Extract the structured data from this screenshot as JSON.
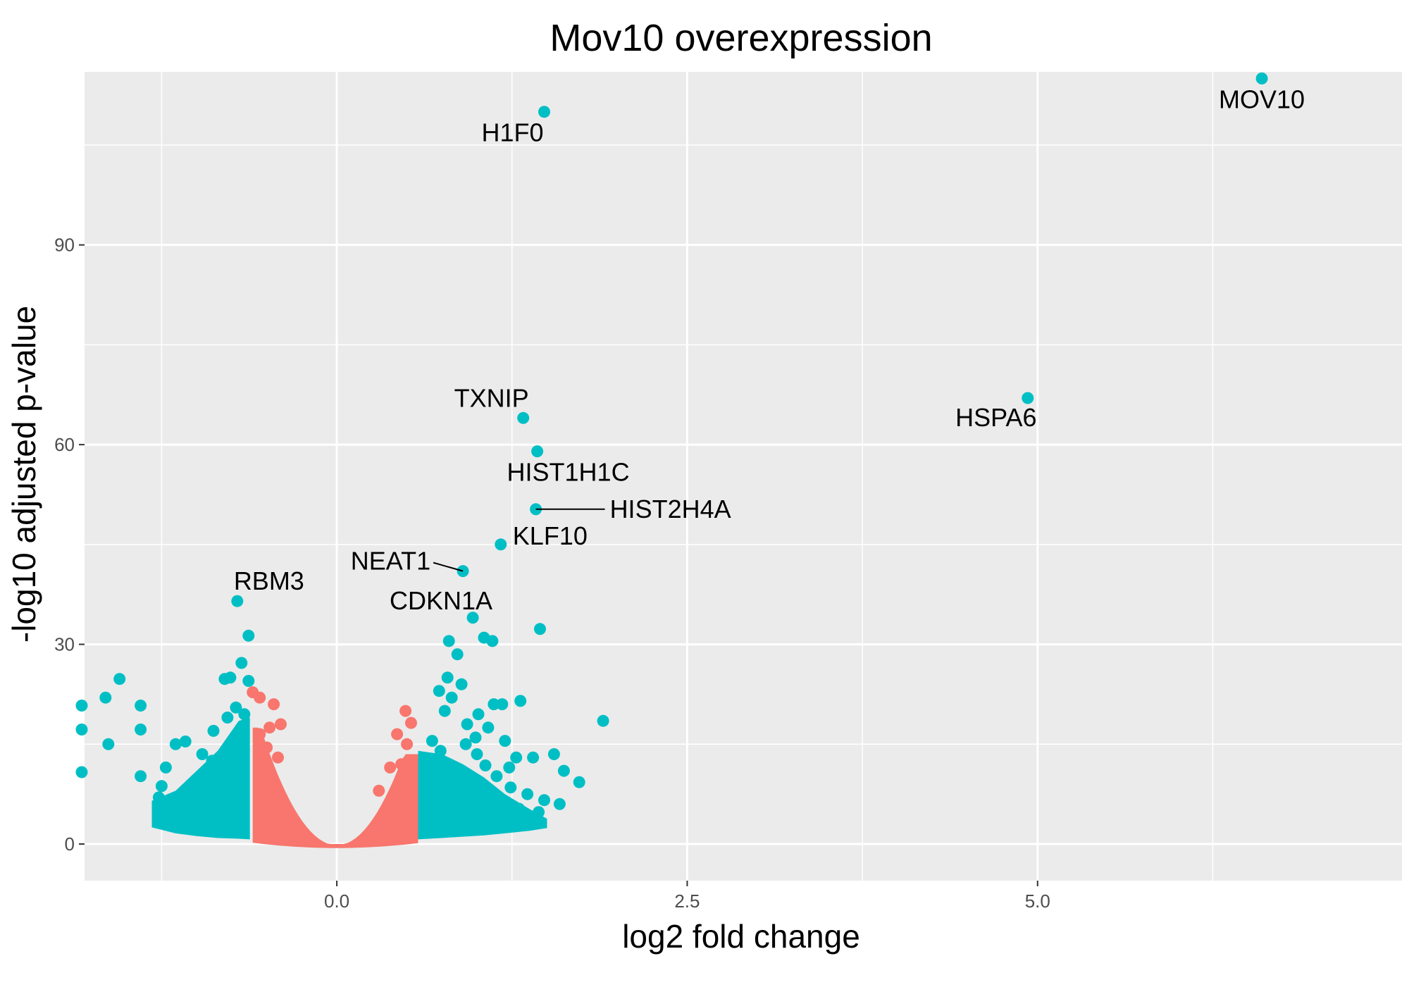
{
  "chart_data": {
    "type": "scatter",
    "title": "Mov10 overexpression",
    "xlabel": "log2 fold change",
    "ylabel": "-log10 adjusted p-value",
    "xlim": [
      -1.8,
      7.6
    ],
    "ylim": [
      -5.5,
      116
    ],
    "xticks": [
      0.0,
      2.5,
      5.0
    ],
    "xtick_labels": [
      "0.0",
      "2.5",
      "5.0"
    ],
    "yticks": [
      0,
      30,
      60,
      90
    ],
    "ytick_labels": [
      "0",
      "30",
      "60",
      "90"
    ],
    "grid": true,
    "legend": "none",
    "colors": {
      "not_significant": "#F8766D",
      "significant": "#00BFC4",
      "panel_background": "#EBEBEB",
      "grid": "#FFFFFF"
    },
    "series": [
      {
        "color": "#00BFC4",
        "points": [
          [
            6.6,
            115
          ],
          [
            1.48,
            110
          ],
          [
            4.93,
            67
          ],
          [
            1.33,
            64
          ],
          [
            1.43,
            59
          ],
          [
            1.42,
            50.3
          ],
          [
            1.17,
            45
          ],
          [
            0.9,
            41
          ],
          [
            -0.71,
            36.5
          ],
          [
            0.97,
            34
          ],
          [
            1.45,
            32.3
          ],
          [
            -0.63,
            31.3
          ],
          [
            1.05,
            31
          ],
          [
            1.11,
            30.5
          ],
          [
            0.8,
            30.5
          ],
          [
            0.86,
            28.5
          ],
          [
            -0.68,
            27.2
          ],
          [
            -0.76,
            25
          ],
          [
            -0.8,
            24.8
          ],
          [
            -0.63,
            24.5
          ],
          [
            -1.55,
            24.8
          ],
          [
            -1.65,
            22
          ],
          [
            -1.4,
            20.8
          ],
          [
            -1.82,
            20.8
          ],
          [
            -1.82,
            17.2
          ],
          [
            -1.4,
            17.2
          ],
          [
            -1.63,
            15
          ],
          [
            -1.82,
            10.8
          ],
          [
            -1.4,
            10.2
          ],
          [
            1.9,
            18.5
          ],
          [
            1.31,
            21.5
          ],
          [
            1.18,
            21
          ],
          [
            1.12,
            21
          ],
          [
            0.89,
            24
          ],
          [
            0.79,
            25
          ],
          [
            0.73,
            23
          ],
          [
            0.82,
            22
          ],
          [
            0.77,
            20
          ],
          [
            0.93,
            18
          ],
          [
            1.01,
            19.5
          ],
          [
            1.08,
            17.5
          ],
          [
            1.4,
            13
          ],
          [
            1.55,
            13.5
          ],
          [
            1.62,
            11
          ],
          [
            1.73,
            9.3
          ],
          [
            1.59,
            6
          ],
          [
            1.48,
            6.6
          ],
          [
            1.3,
            5.3
          ],
          [
            1.21,
            4.2
          ],
          [
            1.12,
            3.5
          ],
          [
            -0.72,
            20.5
          ],
          [
            -0.66,
            19.5
          ],
          [
            -0.78,
            19
          ],
          [
            -0.88,
            17
          ],
          [
            -1.08,
            15.4
          ],
          [
            -1.15,
            15
          ],
          [
            -0.96,
            13.5
          ],
          [
            -0.89,
            12.5
          ],
          [
            -1.22,
            11.5
          ],
          [
            -1.25,
            8.7
          ],
          [
            -1.0,
            9.2
          ],
          [
            -1.27,
            7
          ],
          [
            -1.18,
            6
          ],
          [
            -0.98,
            5.5
          ],
          [
            -0.95,
            4.2
          ],
          [
            -1.05,
            3.5
          ],
          [
            -0.83,
            10
          ],
          [
            -0.74,
            11.5
          ],
          [
            -0.72,
            14
          ],
          [
            -0.8,
            8
          ],
          [
            -0.88,
            6.5
          ],
          [
            0.66,
            9
          ],
          [
            0.7,
            12
          ],
          [
            0.74,
            14
          ],
          [
            0.68,
            15.5
          ],
          [
            0.86,
            11
          ],
          [
            0.95,
            9
          ],
          [
            1.04,
            8
          ],
          [
            0.88,
            6
          ],
          [
            0.78,
            5
          ],
          [
            0.72,
            4
          ],
          [
            0.66,
            3.5
          ],
          [
            1.24,
            8.5
          ],
          [
            1.36,
            7.5
          ],
          [
            1.44,
            4.8
          ],
          [
            1.0,
            13.5
          ],
          [
            1.06,
            11.8
          ],
          [
            1.14,
            10.2
          ],
          [
            1.23,
            11.5
          ],
          [
            0.92,
            15
          ],
          [
            0.99,
            16
          ],
          [
            1.2,
            15.5
          ],
          [
            1.28,
            13
          ]
        ]
      },
      {
        "color": "#F8766D",
        "points": [
          [
            -0.6,
            22.8
          ],
          [
            -0.55,
            22
          ],
          [
            -0.45,
            21
          ],
          [
            0.49,
            20
          ],
          [
            0.53,
            18.2
          ],
          [
            0.43,
            16.5
          ],
          [
            0.5,
            15
          ],
          [
            -0.4,
            18
          ],
          [
            -0.48,
            17.5
          ],
          [
            -0.55,
            16.5
          ],
          [
            -0.5,
            14.5
          ],
          [
            -0.42,
            13
          ],
          [
            0.38,
            11.5
          ],
          [
            0.46,
            12
          ],
          [
            0.3,
            8
          ]
        ]
      }
    ],
    "annotations": [
      {
        "text": "MOV10",
        "x": 6.6,
        "y": 115
      },
      {
        "text": "H1F0",
        "x": 1.48,
        "y": 110
      },
      {
        "text": "HSPA6",
        "x": 4.93,
        "y": 67
      },
      {
        "text": "TXNIP",
        "x": 1.33,
        "y": 64
      },
      {
        "text": "HIST1H1C",
        "x": 1.43,
        "y": 59
      },
      {
        "text": "HIST2H4A",
        "x": 1.42,
        "y": 50.3
      },
      {
        "text": "KLF10",
        "x": 1.17,
        "y": 45
      },
      {
        "text": "NEAT1",
        "x": 0.9,
        "y": 41
      },
      {
        "text": "RBM3",
        "x": -0.71,
        "y": 36.5
      },
      {
        "text": "CDKN1A",
        "x": 0.97,
        "y": 34
      }
    ]
  }
}
